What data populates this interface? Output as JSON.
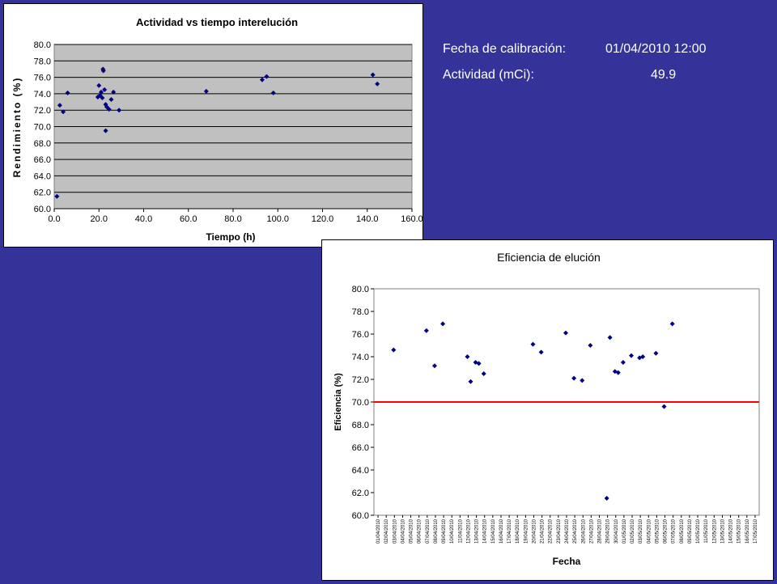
{
  "info": {
    "calibration_label": "Fecha de calibración:",
    "calibration_value": "01/04/2010 12:00",
    "activity_label": "Actividad (mCi):",
    "activity_value": "49.9"
  },
  "colors": {
    "background": "#333399",
    "plot_bg_chart1": "#C0C0C0",
    "marker": "#000080",
    "threshold_line": "#FF0000"
  },
  "chart_data": [
    {
      "type": "scatter",
      "title": "Actividad vs tiempo interelución",
      "xlabel": "Tiempo (h)",
      "ylabel": "Rendimiento (%)",
      "xlim": [
        0,
        160
      ],
      "ylim": [
        60,
        80
      ],
      "grid": true,
      "x_ticks": [
        "0.0",
        "20.0",
        "40.0",
        "60.0",
        "80.0",
        "100.0",
        "120.0",
        "140.0",
        "160.0"
      ],
      "y_ticks": [
        "60.0",
        "62.0",
        "64.0",
        "66.0",
        "68.0",
        "70.0",
        "72.0",
        "74.0",
        "76.0",
        "78.0",
        "80.0"
      ],
      "points": [
        [
          1.2,
          61.5
        ],
        [
          2.5,
          72.6
        ],
        [
          4,
          71.8
        ],
        [
          6,
          74.1
        ],
        [
          19.5,
          73.6
        ],
        [
          20,
          75
        ],
        [
          20.5,
          73.8
        ],
        [
          21,
          74.2
        ],
        [
          21.5,
          73.5
        ],
        [
          21.8,
          77
        ],
        [
          22,
          76.8
        ],
        [
          22.5,
          74.5
        ],
        [
          23,
          72.7
        ],
        [
          23,
          69.5
        ],
        [
          23.5,
          72.4
        ],
        [
          24.5,
          72.1
        ],
        [
          25.5,
          73.3
        ],
        [
          26.5,
          74.2
        ],
        [
          29,
          72
        ],
        [
          68,
          74.3
        ],
        [
          93,
          75.7
        ],
        [
          95,
          76.1
        ],
        [
          98,
          74.1
        ],
        [
          142.5,
          76.3
        ],
        [
          144.5,
          75.2
        ]
      ]
    },
    {
      "type": "scatter",
      "title": "Eficiencia de elución",
      "xlabel": "Fecha",
      "ylabel": "Eficiencia (%)",
      "ylim": [
        60,
        80
      ],
      "grid": false,
      "threshold": 70,
      "y_ticks": [
        "60.0",
        "62.0",
        "64.0",
        "66.0",
        "68.0",
        "70.0",
        "72.0",
        "74.0",
        "76.0",
        "78.0",
        "80.0"
      ],
      "x_ticks": [
        "01/04/2010",
        "02/04/2010",
        "03/04/2010",
        "04/04/2010",
        "05/04/2010",
        "06/04/2010",
        "07/04/2010",
        "08/04/2010",
        "09/04/2010",
        "10/04/2010",
        "11/04/2010",
        "12/04/2010",
        "13/04/2010",
        "14/04/2010",
        "15/04/2010",
        "16/04/2010",
        "17/04/2010",
        "18/04/2010",
        "19/04/2010",
        "20/04/2010",
        "21/04/2010",
        "22/04/2010",
        "23/04/2010",
        "24/04/2010",
        "25/04/2010",
        "26/04/2010",
        "27/04/2010",
        "28/04/2010",
        "29/04/2010",
        "30/04/2010",
        "01/05/2010",
        "02/05/2010",
        "03/05/2010",
        "04/05/2010",
        "05/05/2010",
        "06/05/2010",
        "07/05/2010",
        "08/05/2010",
        "09/05/2010",
        "10/05/2010",
        "11/05/2010",
        "12/05/2010",
        "13/05/2010",
        "14/05/2010",
        "15/05/2010",
        "16/05/2010",
        "17/05/2010"
      ],
      "points": [
        [
          "03/04/2010",
          74.6
        ],
        [
          "07/04/2010",
          76.3
        ],
        [
          "08/04/2010",
          73.2
        ],
        [
          "09/04/2010",
          76.9
        ],
        [
          "12/04/2010",
          74.0
        ],
        [
          "12/04/2010",
          71.8
        ],
        [
          "13/04/2010",
          73.5
        ],
        [
          "13/04/2010",
          73.4
        ],
        [
          "14/04/2010",
          72.5
        ],
        [
          "20/04/2010",
          75.1
        ],
        [
          "21/04/2010",
          74.4
        ],
        [
          "24/04/2010",
          76.1
        ],
        [
          "25/04/2010",
          72.1
        ],
        [
          "26/04/2010",
          71.9
        ],
        [
          "27/04/2010",
          75.0
        ],
        [
          "29/04/2010",
          61.5
        ],
        [
          "29/04/2010",
          75.7
        ],
        [
          "30/04/2010",
          72.7
        ],
        [
          "30/04/2010",
          72.6
        ],
        [
          "01/05/2010",
          73.5
        ],
        [
          "02/05/2010",
          74.1
        ],
        [
          "03/05/2010",
          73.9
        ],
        [
          "03/05/2010",
          74.0
        ],
        [
          "05/05/2010",
          74.3
        ],
        [
          "06/05/2010",
          69.6
        ],
        [
          "07/05/2010",
          76.9
        ]
      ]
    }
  ]
}
